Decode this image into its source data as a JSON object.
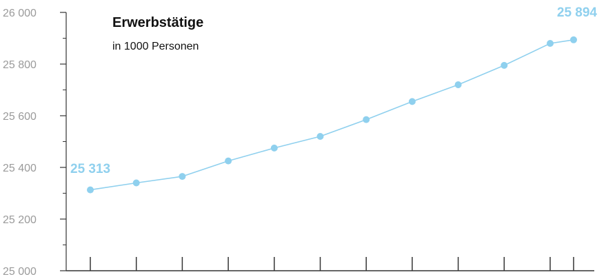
{
  "chart_data": {
    "type": "line",
    "title": "Erwerbstätige",
    "subtitle": "in 1000 Personen",
    "ylim": [
      25000,
      26000
    ],
    "y_ticks": [
      {
        "value": 25000,
        "label": "25 000"
      },
      {
        "value": 25200,
        "label": "25 200"
      },
      {
        "value": 25400,
        "label": "25 400"
      },
      {
        "value": 25600,
        "label": "25 600"
      },
      {
        "value": 25800,
        "label": "25 800"
      },
      {
        "value": 26000,
        "label": "26 000"
      }
    ],
    "y_minor_step": 100,
    "point_count": 12,
    "values": [
      25313,
      25340,
      25365,
      25425,
      25475,
      25520,
      25585,
      25655,
      25720,
      25795,
      25880,
      25894
    ],
    "start_label": "25 313",
    "end_label": "25 894",
    "grid": false
  },
  "colors": {
    "line": "#8fd0ee",
    "axis": "#333333",
    "tick_label": "#9a9a9a",
    "title": "#111111"
  }
}
